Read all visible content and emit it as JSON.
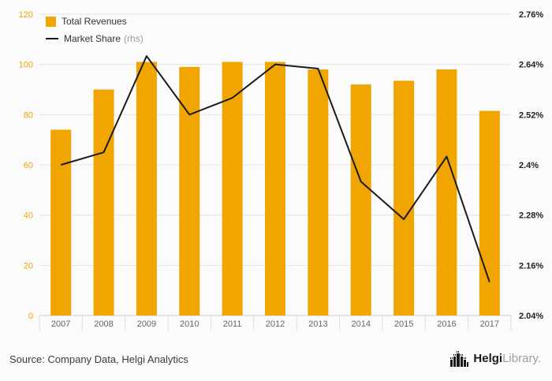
{
  "chart_data": {
    "type": "bar",
    "categories": [
      "2007",
      "2008",
      "2009",
      "2010",
      "2011",
      "2012",
      "2013",
      "2014",
      "2015",
      "2016",
      "2017"
    ],
    "series": [
      {
        "name": "Total Revenues",
        "type": "bar",
        "axis": "left",
        "color": "#F0A500",
        "values": [
          74,
          90,
          101,
          99,
          101,
          101,
          98,
          92,
          93.5,
          98,
          81.5
        ]
      },
      {
        "name": "Market Share",
        "suffix": "(rhs)",
        "type": "line",
        "axis": "right",
        "color": "#1a1a1a",
        "values": [
          2.4,
          2.43,
          2.66,
          2.52,
          2.56,
          2.64,
          2.63,
          2.36,
          2.27,
          2.42,
          2.12
        ]
      }
    ],
    "title": "",
    "xlabel": "",
    "ylabel": "",
    "left_axis": {
      "min": 0,
      "max": 120,
      "ticks": [
        0,
        20,
        40,
        60,
        80,
        100,
        120
      ],
      "color": "#F0A500"
    },
    "right_axis": {
      "min": 2.04,
      "max": 2.76,
      "tick_values": [
        2.04,
        2.16,
        2.28,
        2.4,
        2.52,
        2.64,
        2.76
      ],
      "ticks": [
        "2.04%",
        "2.16%",
        "2.28%",
        "2.4%",
        "2.52%",
        "2.64%",
        "2.76%"
      ],
      "color": "#222222"
    },
    "grid": true,
    "legend_position": "top-left"
  },
  "footer": {
    "source": "Source: Company Data, Helgi Analytics",
    "brand_primary": "Helgi",
    "brand_secondary": "Library."
  }
}
